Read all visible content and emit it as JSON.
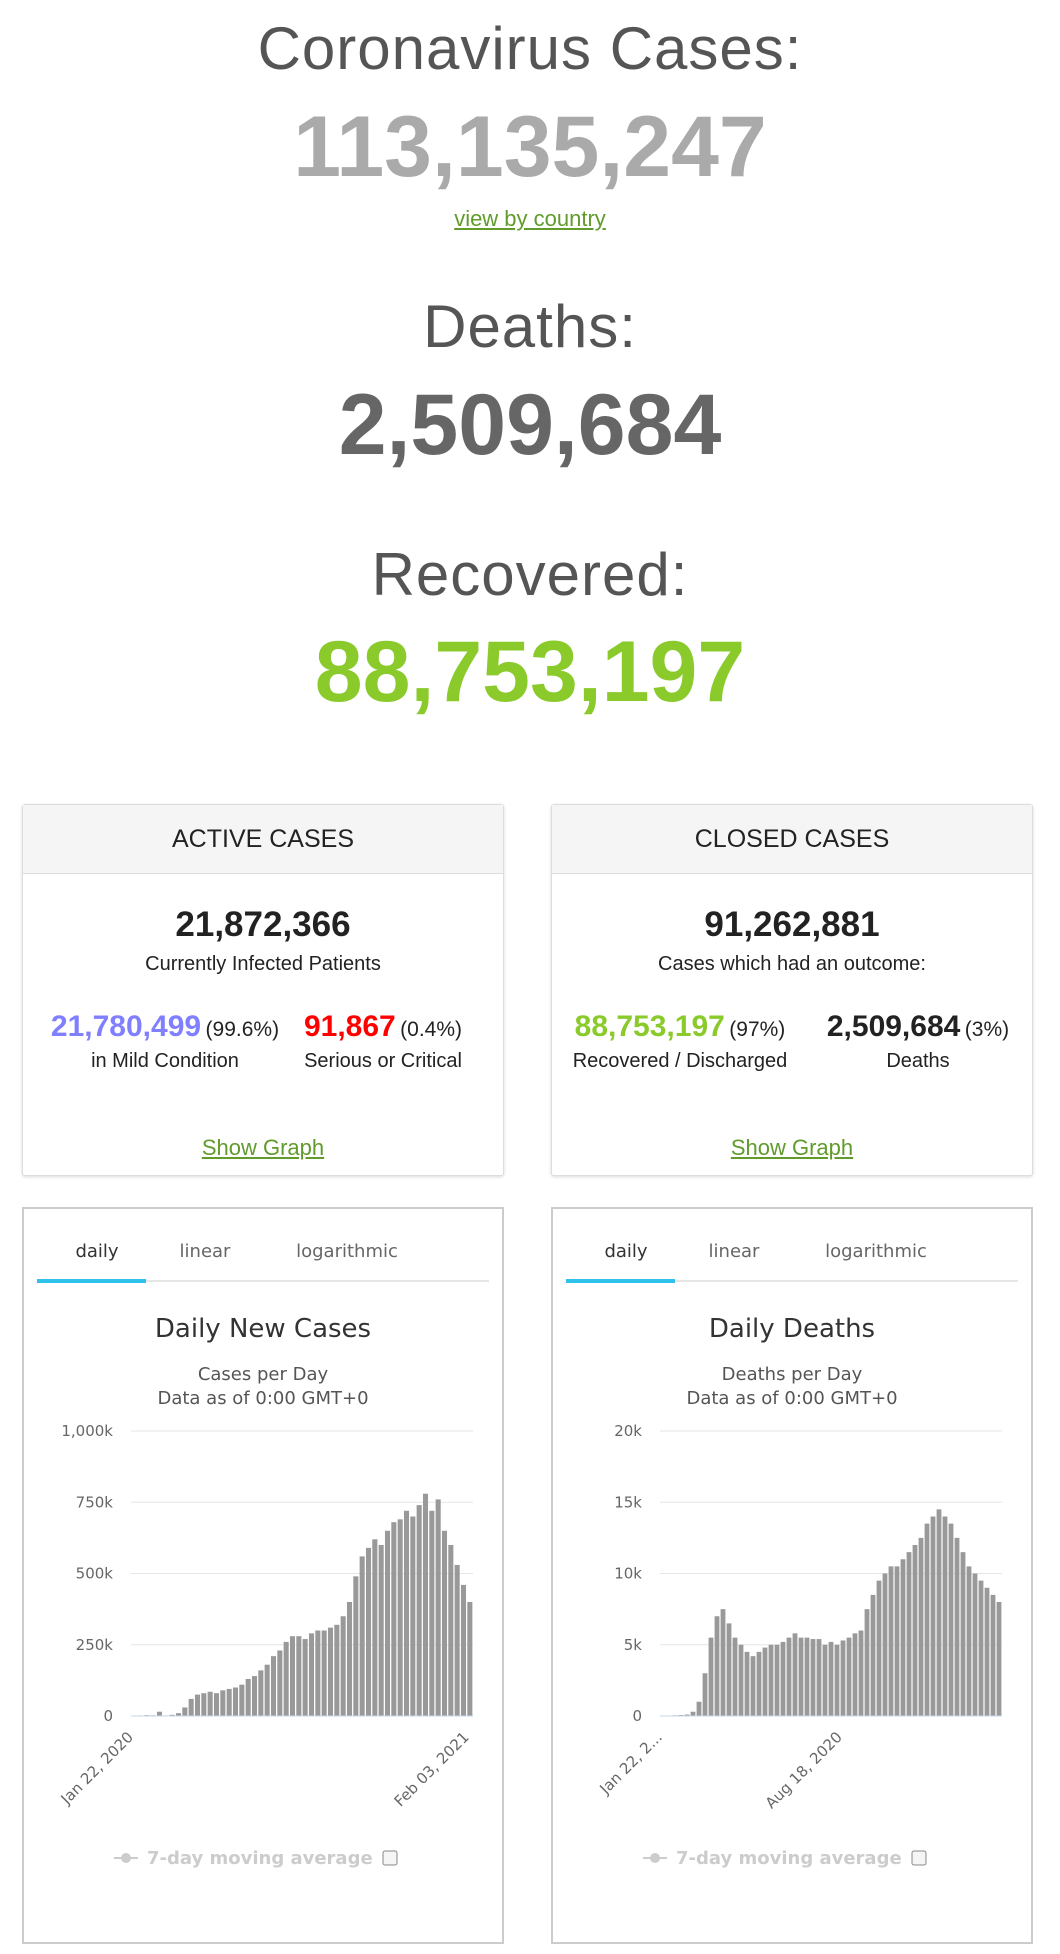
{
  "header": {
    "title": "Coronavirus Cases:",
    "total": "113,135,247",
    "link": "view by country"
  },
  "deaths": {
    "label": "Deaths:",
    "value": "2,509,684"
  },
  "recovered": {
    "label": "Recovered:",
    "value": "88,753,197"
  },
  "panels": [
    {
      "title": "ACTIVE CASES",
      "total": "21,872,366",
      "subtitle": "Currently Infected Patients",
      "left": {
        "value": "21,780,499",
        "share": "(99.6%)",
        "label": "in Mild Condition"
      },
      "right": {
        "value": "91,867",
        "share": "(0.4%)",
        "label": "Serious or Critical"
      },
      "link": "Show Graph"
    },
    {
      "title": "CLOSED CASES",
      "total": "91,262,881",
      "subtitle": "Cases which had an outcome:",
      "left": {
        "value": "88,753,197",
        "share": "(97%)",
        "label": "Recovered / Discharged"
      },
      "right": {
        "value": "2,509,684",
        "share": "(3%)",
        "label": "Deaths"
      },
      "link": "Show Graph"
    }
  ],
  "chart_data": [
    {
      "type": "bar",
      "tabs": [
        "daily",
        "linear",
        "logarithmic"
      ],
      "title": "Daily New Cases",
      "subtitle": "Cases per Day",
      "note": "Data as of 0:00 GMT+0",
      "legend": "7-day moving average",
      "color": "#999999",
      "grid": true,
      "ylim": [
        0,
        1000000
      ],
      "yticks": [
        0,
        {
          "value": 250000,
          "label": "250k"
        },
        {
          "value": 500000,
          "label": "500k"
        },
        {
          "value": 750000,
          "label": "750k"
        },
        {
          "value": 1000000,
          "label": "1,000k"
        }
      ],
      "categories": [
        "Jan 22, 2020",
        null,
        null,
        null,
        null,
        null,
        null,
        null,
        null,
        null,
        null,
        null,
        null,
        null,
        null,
        null,
        null,
        null,
        null,
        null,
        null,
        null,
        null,
        null,
        null,
        null,
        null,
        null,
        null,
        null,
        null,
        null,
        null,
        null,
        null,
        null,
        null,
        null,
        null,
        null,
        null,
        null,
        null,
        null,
        null,
        null,
        null,
        null,
        null,
        null,
        null,
        null,
        null,
        "Feb 03, 2021"
      ],
      "values": [
        600,
        2000,
        3000,
        2500,
        15000,
        2000,
        4000,
        10000,
        30000,
        60000,
        75000,
        80000,
        85000,
        80000,
        90000,
        95000,
        100000,
        110000,
        130000,
        140000,
        160000,
        180000,
        210000,
        230000,
        260000,
        280000,
        280000,
        270000,
        290000,
        300000,
        300000,
        310000,
        320000,
        350000,
        400000,
        490000,
        560000,
        590000,
        620000,
        600000,
        650000,
        680000,
        690000,
        720000,
        700000,
        740000,
        780000,
        720000,
        760000,
        650000,
        600000,
        530000,
        460000,
        400000
      ]
    },
    {
      "type": "bar",
      "tabs": [
        "daily",
        "linear",
        "logarithmic"
      ],
      "title": "Daily Deaths",
      "subtitle": "Deaths per Day",
      "note": "Data as of 0:00 GMT+0",
      "legend": "7-day moving average",
      "color": "#999999",
      "grid": true,
      "ylim": [
        0,
        20000
      ],
      "yticks": [
        0,
        {
          "value": 5000,
          "label": "5k"
        },
        {
          "value": 10000,
          "label": "10k"
        },
        {
          "value": 15000,
          "label": "15k"
        },
        {
          "value": 20000,
          "label": "20k"
        }
      ],
      "categories": [
        "Jan 22, 2...",
        null,
        null,
        null,
        null,
        null,
        null,
        null,
        null,
        null,
        null,
        null,
        null,
        null,
        null,
        null,
        null,
        null,
        null,
        null,
        null,
        null,
        null,
        null,
        null,
        null,
        null,
        null,
        null,
        null,
        "Aug 18, 2020",
        null,
        null,
        null,
        null,
        null,
        null,
        null,
        null,
        null,
        null,
        null,
        null,
        null,
        null,
        null,
        null,
        null,
        null,
        null,
        null,
        null,
        null,
        null,
        null,
        null,
        null
      ],
      "values": [
        0,
        20,
        50,
        70,
        100,
        300,
        1000,
        3000,
        5500,
        7000,
        7500,
        6500,
        5500,
        5000,
        4500,
        4200,
        4500,
        4800,
        5000,
        5000,
        5200,
        5500,
        5800,
        5500,
        5500,
        5400,
        5400,
        5000,
        5200,
        5000,
        5300,
        5500,
        5800,
        6000,
        7500,
        8500,
        9500,
        10000,
        10500,
        10500,
        11000,
        11500,
        12000,
        12500,
        13500,
        14000,
        14500,
        14000,
        13500,
        12500,
        11500,
        10500,
        10000,
        9500,
        9000,
        8500,
        8000
      ]
    }
  ]
}
